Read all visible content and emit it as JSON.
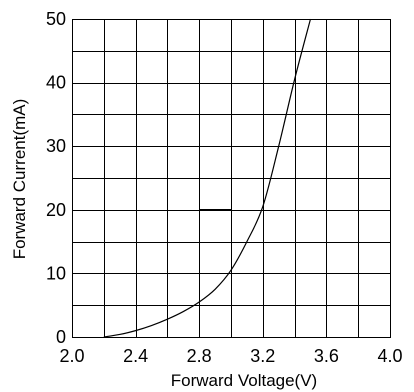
{
  "chart_data": {
    "type": "line",
    "title": "",
    "xlabel": "Forward Voltage(V)",
    "ylabel": "Forward Current(mA)",
    "xlim": [
      2.0,
      4.0
    ],
    "ylim": [
      0,
      50
    ],
    "x_ticks": [
      "2.0",
      "2.4",
      "2.8",
      "3.2",
      "3.6",
      "4.0"
    ],
    "x_tick_values": [
      2.0,
      2.4,
      2.8,
      3.2,
      3.6,
      4.0
    ],
    "y_ticks": [
      "0",
      "10",
      "20",
      "30",
      "40",
      "50"
    ],
    "y_tick_values": [
      0,
      10,
      20,
      30,
      40,
      50
    ],
    "x_grid_step": 0.2,
    "y_grid_step": 5,
    "grid": true,
    "legend": "none",
    "series": [
      {
        "x": [
          2.2,
          2.3,
          2.4,
          2.5,
          2.6,
          2.7,
          2.8,
          2.9,
          3.0,
          3.1,
          3.2,
          3.3,
          3.4,
          3.5
        ],
        "values": [
          0,
          0.4,
          1.0,
          1.8,
          2.8,
          4.0,
          5.5,
          7.5,
          10.5,
          15.0,
          20.5,
          30.0,
          40.5,
          50.0
        ]
      }
    ],
    "annotations": [
      {
        "type": "hline",
        "x0": 2.8,
        "x1": 3.0,
        "y": 20
      }
    ]
  }
}
